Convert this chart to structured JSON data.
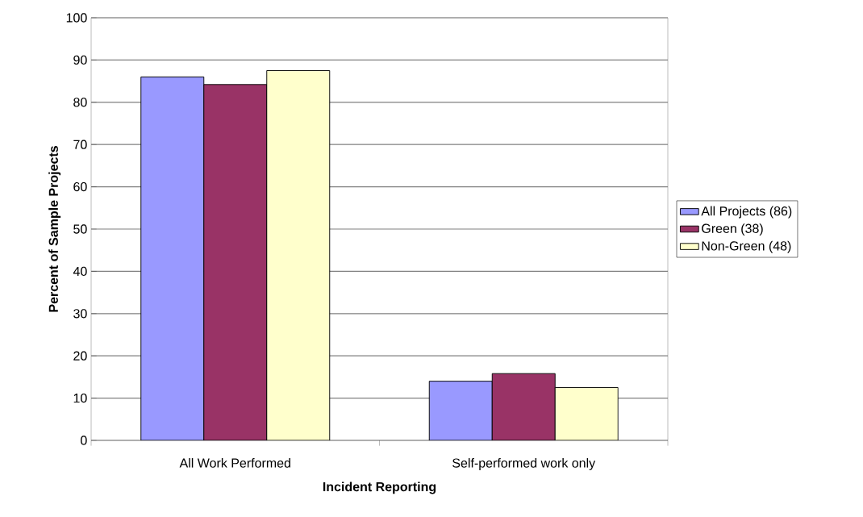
{
  "chart_data": {
    "type": "bar",
    "xlabel": "Incident Reporting",
    "ylabel": "Percent of Sample Projects",
    "categories": [
      "All Work Performed",
      "Self-performed work only"
    ],
    "series": [
      {
        "name": "All Projects (86)",
        "color": "#9999ff",
        "values": [
          86.0,
          14.0
        ]
      },
      {
        "name": "Green (38)",
        "color": "#993366",
        "values": [
          84.2,
          15.8
        ]
      },
      {
        "name": "Non-Green (48)",
        "color": "#ffffcc",
        "values": [
          87.5,
          12.5
        ]
      }
    ],
    "ylim": [
      0,
      100
    ],
    "yticks": [
      0,
      10,
      20,
      30,
      40,
      50,
      60,
      70,
      80,
      90,
      100
    ],
    "grid": "y",
    "legend": "right"
  }
}
